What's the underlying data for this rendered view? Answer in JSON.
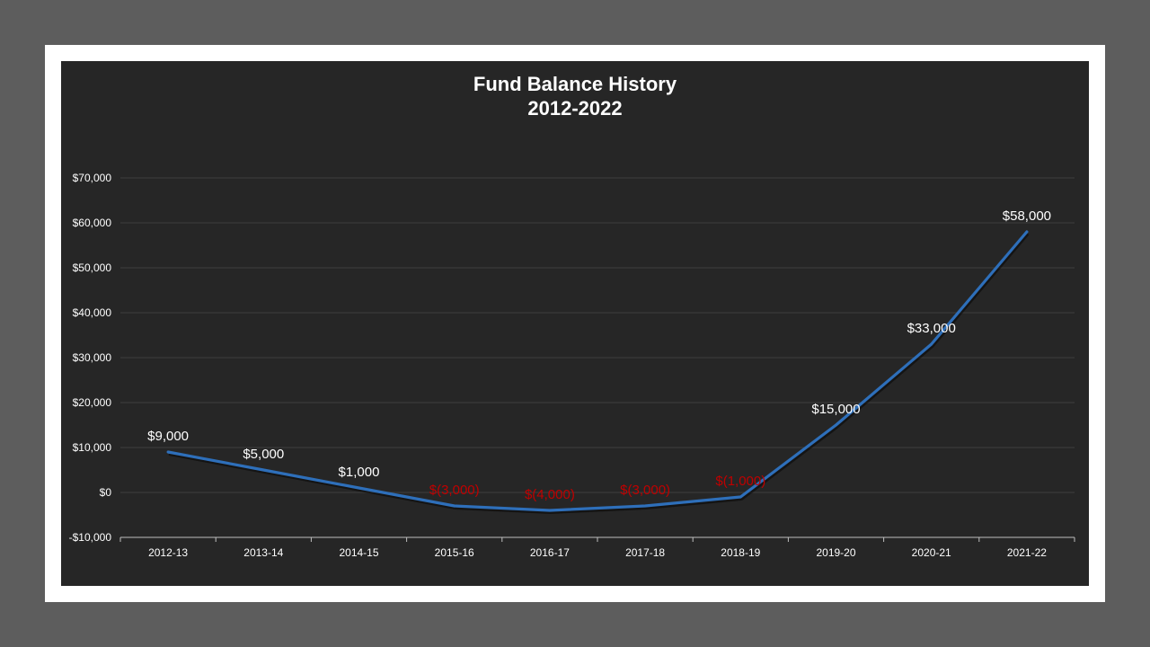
{
  "chart_data": {
    "type": "line",
    "title": "Fund Balance History",
    "subtitle": "2012-2022",
    "categories": [
      "2012-13",
      "2013-14",
      "2014-15",
      "2015-16",
      "2016-17",
      "2017-18",
      "2018-19",
      "2019-20",
      "2020-21",
      "2021-22"
    ],
    "series": [
      {
        "values": [
          9000,
          5000,
          1000,
          -3000,
          -4000,
          -3000,
          -1000,
          15000,
          33000,
          58000
        ],
        "data_labels": [
          "$9,000",
          "$5,000",
          "$1,000",
          "$(3,000)",
          "$(4,000)",
          "$(3,000)",
          "$(1,000)",
          "$15,000",
          "$33,000",
          "$58,000"
        ],
        "color": "#2e6fba"
      }
    ],
    "ylim": [
      -10000,
      70000
    ],
    "yticks": [
      -10000,
      0,
      10000,
      20000,
      30000,
      40000,
      50000,
      60000,
      70000
    ],
    "ytick_labels": [
      "-$10,000",
      "$0",
      "$10,000",
      "$20,000",
      "$30,000",
      "$40,000",
      "$50,000",
      "$60,000",
      "$70,000"
    ],
    "xlabel": "",
    "ylabel": "",
    "grid": true,
    "legend": "none",
    "colors": {
      "background": "#262626",
      "frame": "#ffffff",
      "outer": "#5d5d5d",
      "text": "#ffffff",
      "negative_label": "#c00000",
      "grid": "#3d3d3d",
      "axis": "#bfbfbf"
    }
  }
}
